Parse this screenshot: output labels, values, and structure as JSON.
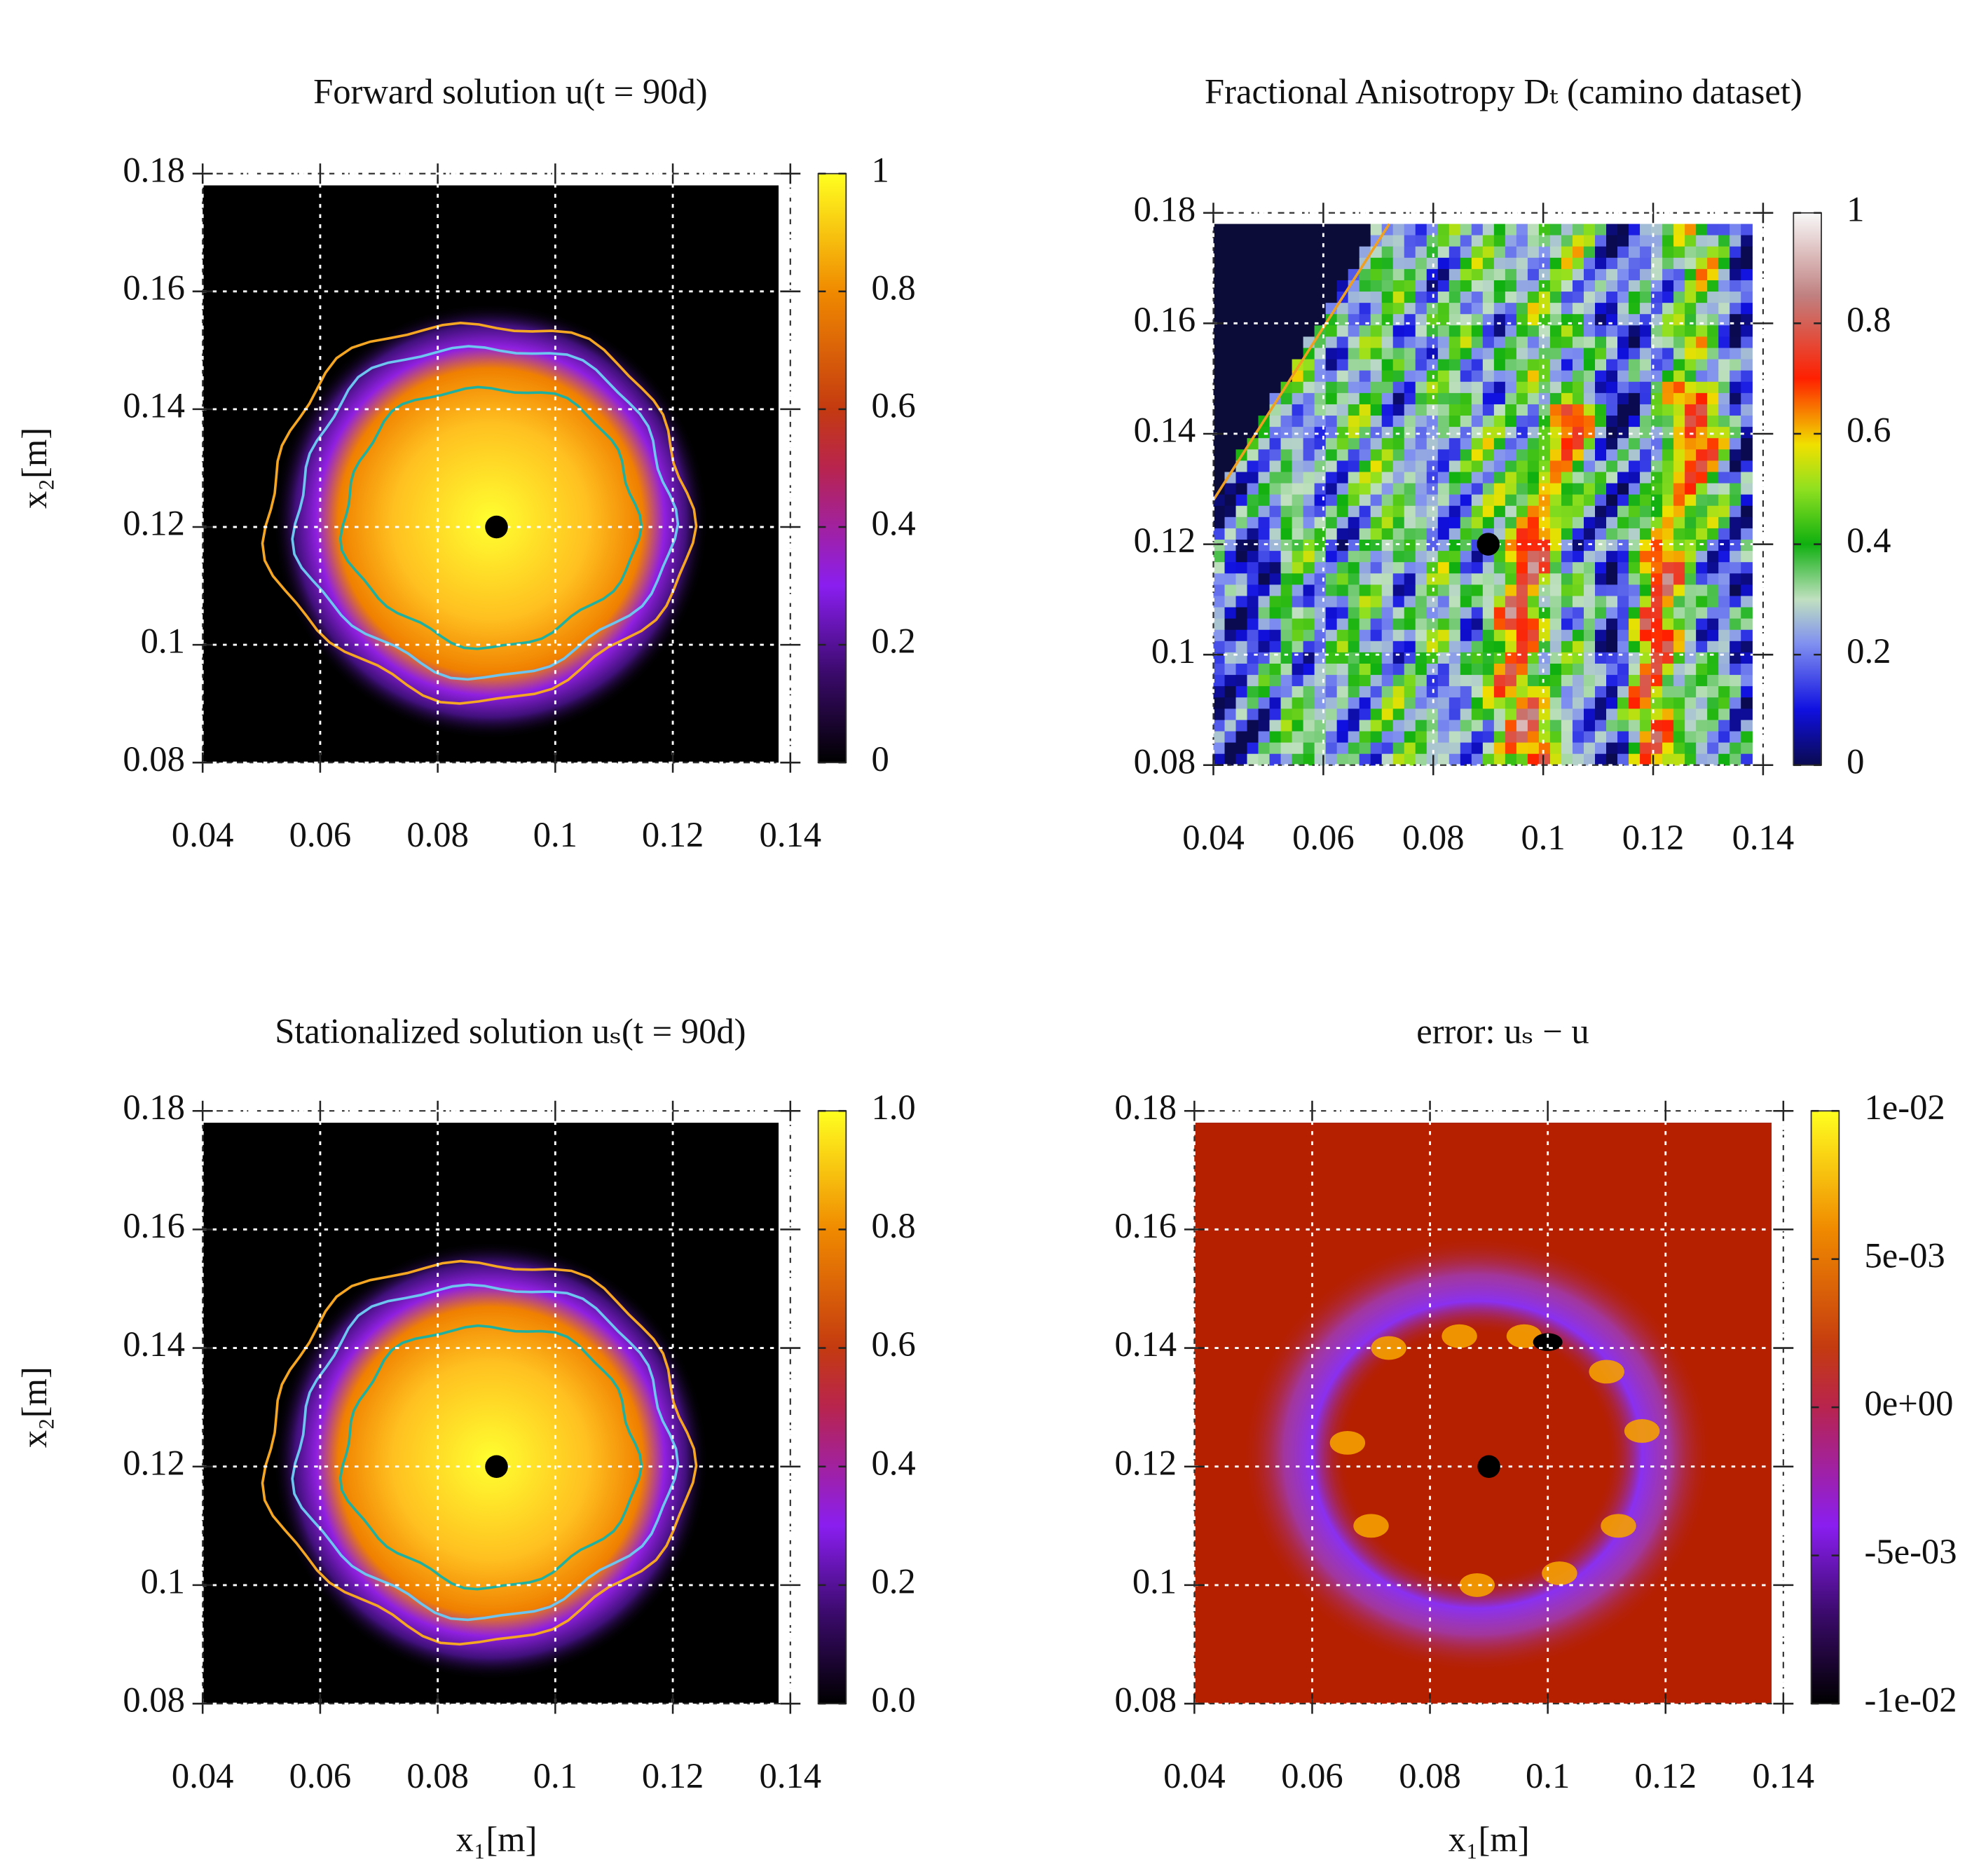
{
  "chart_data": [
    {
      "type": "heatmap",
      "title": "Forward solution u(t = 90d)",
      "ylabel": "x₂[m]",
      "xlim": [
        0.04,
        0.14
      ],
      "xticks": [
        0.04,
        0.06,
        0.08,
        0.1,
        0.12,
        0.14
      ],
      "ylim": [
        0.08,
        0.18
      ],
      "yticks": [
        0.08,
        0.1,
        0.12,
        0.14,
        0.16,
        0.18
      ],
      "clim": [
        0,
        1
      ],
      "colorbar_ticks": [
        0,
        0.2,
        0.4,
        0.6,
        0.8,
        1
      ],
      "colormap": "fire",
      "grid": true,
      "marker": {
        "x": 0.09,
        "y": 0.12
      }
    },
    {
      "type": "heatmap",
      "title": "Fractional Anisotropy Dₜ (camino dataset)",
      "xlim": [
        0.04,
        0.14
      ],
      "xticks": [
        0.04,
        0.06,
        0.08,
        0.1,
        0.12,
        0.14
      ],
      "ylim": [
        0.08,
        0.18
      ],
      "yticks": [
        0.08,
        0.1,
        0.12,
        0.14,
        0.16,
        0.18
      ],
      "clim": [
        0,
        1
      ],
      "colorbar_ticks": [
        0,
        0.2,
        0.4,
        0.6,
        0.8,
        1
      ],
      "colormap": "rainbow",
      "grid": true,
      "marker": {
        "x": 0.09,
        "y": 0.12
      }
    },
    {
      "type": "heatmap",
      "title": "Stationalized solution uₛ(t = 90d)",
      "xlabel": "x₁[m]",
      "ylabel": "x₂[m]",
      "xlim": [
        0.04,
        0.14
      ],
      "xticks": [
        0.04,
        0.06,
        0.08,
        0.1,
        0.12,
        0.14
      ],
      "ylim": [
        0.08,
        0.18
      ],
      "yticks": [
        0.08,
        0.1,
        0.12,
        0.14,
        0.16,
        0.18
      ],
      "clim": [
        0,
        1
      ],
      "colorbar_ticks": [
        {
          "value": 0,
          "label": "0.0"
        },
        0.2,
        0.4,
        0.6,
        0.8,
        {
          "value": 1,
          "label": "1.0"
        }
      ],
      "colormap": "fire",
      "grid": true,
      "marker": {
        "x": 0.09,
        "y": 0.12
      }
    },
    {
      "type": "heatmap",
      "title": "error: uₛ − u",
      "xlabel": "x₁[m]",
      "xlim": [
        0.04,
        0.14
      ],
      "xticks": [
        0.04,
        0.06,
        0.08,
        0.1,
        0.12,
        0.14
      ],
      "ylim": [
        0.08,
        0.18
      ],
      "yticks": [
        0.08,
        0.1,
        0.12,
        0.14,
        0.16,
        0.18
      ],
      "clim": [
        -0.01,
        0.01
      ],
      "colorbar_ticks": [
        {
          "value": -0.01,
          "label": "-1e-02"
        },
        {
          "value": -0.005,
          "label": "-5e-03"
        },
        {
          "value": 0,
          "label": "0e+00"
        },
        {
          "value": 0.005,
          "label": "5e-03"
        },
        {
          "value": 0.01,
          "label": "1e-02"
        }
      ],
      "colormap": "fire",
      "grid": true,
      "marker": {
        "x": 0.09,
        "y": 0.12
      }
    }
  ]
}
